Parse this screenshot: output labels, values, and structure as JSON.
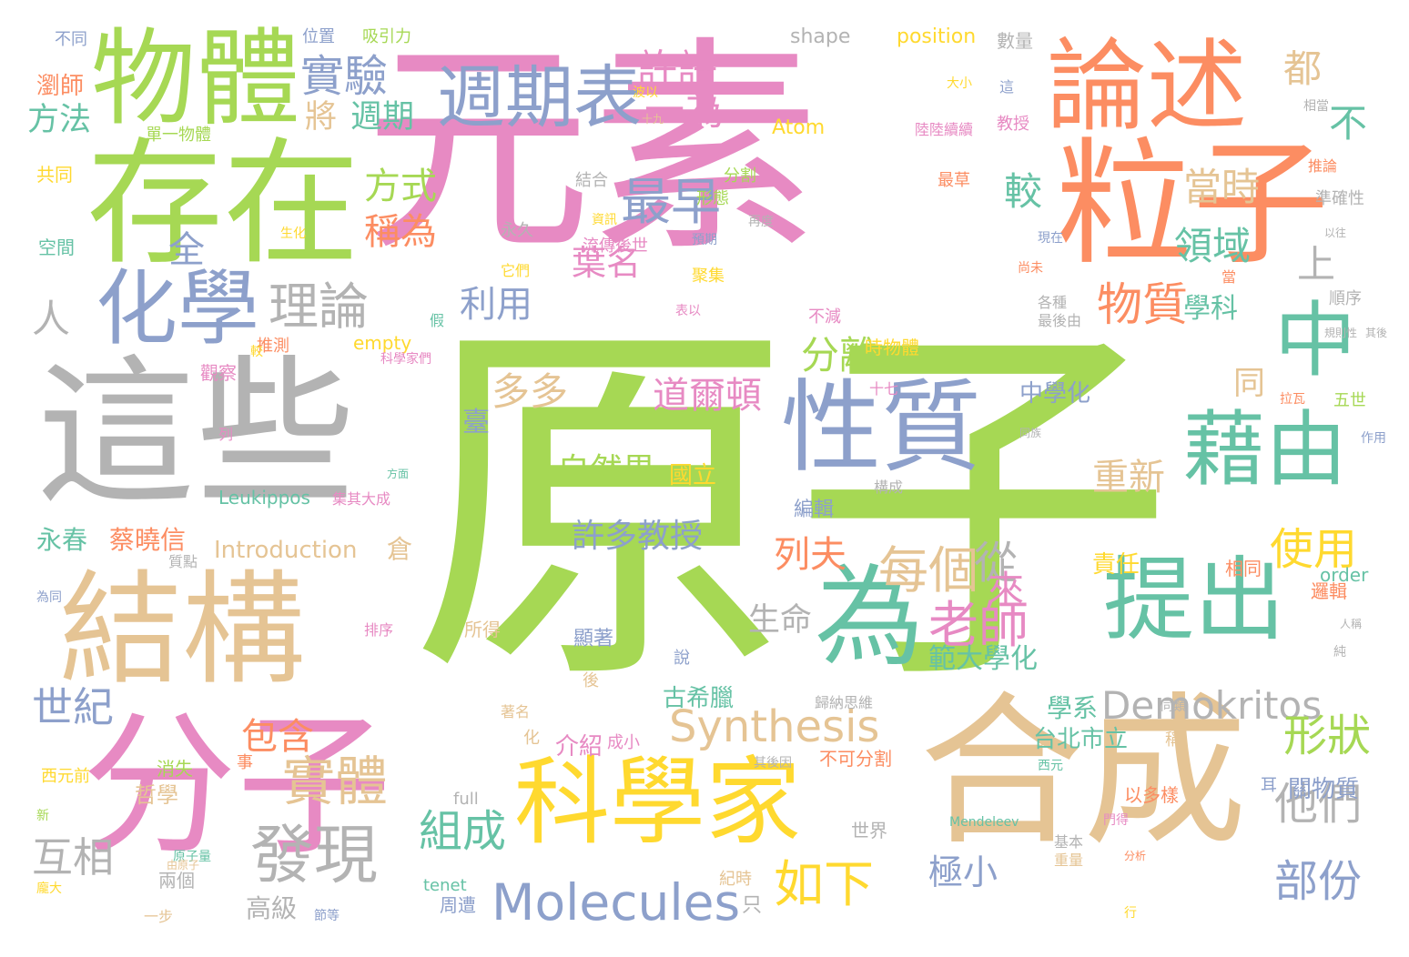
{
  "palette": {
    "green": "#a6d854",
    "pink": "#e78ac3",
    "orange": "#fc8d62",
    "blue": "#8da0cb",
    "teal": "#66c2a5",
    "yellow": "#ffd92f",
    "tan": "#e5c494",
    "gray": "#b3b3b3"
  },
  "words": [
    {
      "text": "原子",
      "color": "green"
    },
    {
      "text": "元素",
      "color": "pink"
    },
    {
      "text": "這些",
      "color": "gray"
    },
    {
      "text": "存在",
      "color": "green"
    },
    {
      "text": "粒子",
      "color": "orange"
    },
    {
      "text": "分子",
      "color": "pink"
    },
    {
      "text": "合成",
      "color": "tan"
    },
    {
      "text": "結構",
      "color": "tan"
    },
    {
      "text": "物體",
      "color": "green"
    },
    {
      "text": "論述",
      "color": "orange"
    },
    {
      "text": "化學",
      "color": "blue"
    },
    {
      "text": "性質",
      "color": "blue"
    },
    {
      "text": "科學家",
      "color": "yellow"
    },
    {
      "text": "提出",
      "color": "teal"
    },
    {
      "text": "藉由",
      "color": "teal"
    },
    {
      "text": "為",
      "color": "teal"
    },
    {
      "text": "中",
      "color": "teal"
    },
    {
      "text": "週期表",
      "color": "blue"
    },
    {
      "text": "Molecules",
      "color": "blue"
    },
    {
      "text": "Demokritos",
      "color": "gray"
    },
    {
      "text": "Synthesis",
      "color": "tan"
    },
    {
      "text": "實驗",
      "color": "blue"
    },
    {
      "text": "理論",
      "color": "gray"
    },
    {
      "text": "最早",
      "color": "blue"
    },
    {
      "text": "物質",
      "color": "orange"
    },
    {
      "text": "發現",
      "color": "gray"
    },
    {
      "text": "實體",
      "color": "tan"
    },
    {
      "text": "老師",
      "color": "pink"
    },
    {
      "text": "每個",
      "color": "tan"
    },
    {
      "text": "如下",
      "color": "yellow"
    },
    {
      "text": "組成",
      "color": "teal"
    },
    {
      "text": "形狀",
      "color": "green"
    },
    {
      "text": "部份",
      "color": "blue"
    },
    {
      "text": "使用",
      "color": "yellow"
    },
    {
      "text": "他們",
      "color": "gray"
    },
    {
      "text": "許許",
      "color": "pink"
    },
    {
      "text": "一為",
      "color": "pink"
    },
    {
      "text": "都",
      "color": "tan"
    },
    {
      "text": "不",
      "color": "teal"
    },
    {
      "text": "較",
      "color": "teal"
    },
    {
      "text": "當時",
      "color": "tan"
    },
    {
      "text": "領域",
      "color": "teal"
    },
    {
      "text": "上",
      "color": "gray"
    },
    {
      "text": "學科",
      "color": "teal"
    },
    {
      "text": "將",
      "color": "tan"
    },
    {
      "text": "週期",
      "color": "teal"
    },
    {
      "text": "方法",
      "color": "teal"
    },
    {
      "text": "方式",
      "color": "green"
    },
    {
      "text": "稱為",
      "color": "orange"
    },
    {
      "text": "全",
      "color": "blue"
    },
    {
      "text": "人",
      "color": "gray"
    },
    {
      "text": "葉名",
      "color": "pink"
    },
    {
      "text": "利用",
      "color": "blue"
    },
    {
      "text": "分離",
      "color": "green"
    },
    {
      "text": "多多",
      "color": "tan"
    },
    {
      "text": "道爾頓",
      "color": "pink"
    },
    {
      "text": "自然界",
      "color": "green"
    },
    {
      "text": "許多教授",
      "color": "blue"
    },
    {
      "text": "重新",
      "color": "tan"
    },
    {
      "text": "同",
      "color": "tan"
    },
    {
      "text": "中學化",
      "color": "blue"
    },
    {
      "text": "臺",
      "color": "blue"
    },
    {
      "text": "國立",
      "color": "yellow"
    },
    {
      "text": "列夫",
      "color": "orange"
    },
    {
      "text": "生命",
      "color": "gray"
    },
    {
      "text": "從",
      "color": "gray"
    },
    {
      "text": "來",
      "color": "pink"
    },
    {
      "text": "範大學化",
      "color": "teal"
    },
    {
      "text": "學系",
      "color": "teal"
    },
    {
      "text": "世紀",
      "color": "blue"
    },
    {
      "text": "包含",
      "color": "orange"
    },
    {
      "text": "互相",
      "color": "gray"
    },
    {
      "text": "極小",
      "color": "blue"
    },
    {
      "text": "高級",
      "color": "gray"
    },
    {
      "text": "台北市立",
      "color": "teal"
    },
    {
      "text": "永春",
      "color": "teal"
    },
    {
      "text": "蔡曉信",
      "color": "orange"
    },
    {
      "text": "Introduction",
      "color": "tan"
    },
    {
      "text": "Leukippos",
      "color": "teal"
    },
    {
      "text": "Atom",
      "color": "yellow"
    },
    {
      "text": "shape",
      "color": "gray"
    },
    {
      "text": "position",
      "color": "yellow"
    },
    {
      "text": "empty",
      "color": "yellow"
    },
    {
      "text": "order",
      "color": "teal"
    },
    {
      "text": "full",
      "color": "gray"
    },
    {
      "text": "tenet",
      "color": "teal"
    },
    {
      "text": "Mendeleev",
      "color": "teal"
    },
    {
      "text": "古希臘",
      "color": "teal"
    },
    {
      "text": "介紹",
      "color": "pink"
    },
    {
      "text": "成小",
      "color": "pink"
    },
    {
      "text": "不可分割",
      "color": "orange"
    },
    {
      "text": "責任",
      "color": "yellow"
    },
    {
      "text": "相同",
      "color": "orange"
    },
    {
      "text": "邏輯",
      "color": "orange"
    },
    {
      "text": "關物質",
      "color": "blue"
    },
    {
      "text": "以多樣",
      "color": "orange"
    },
    {
      "text": "時物體",
      "color": "yellow"
    },
    {
      "text": "哲學",
      "color": "tan"
    },
    {
      "text": "世界",
      "color": "gray"
    },
    {
      "text": "兩個",
      "color": "gray"
    },
    {
      "text": "周遭",
      "color": "blue"
    },
    {
      "text": "只",
      "color": "gray"
    },
    {
      "text": "消失",
      "color": "green"
    },
    {
      "text": "所得",
      "color": "tan"
    },
    {
      "text": "顯著",
      "color": "blue"
    },
    {
      "text": "編輯",
      "color": "blue"
    },
    {
      "text": "倉",
      "color": "tan"
    },
    {
      "text": "不同",
      "color": "blue"
    },
    {
      "text": "位置",
      "color": "blue"
    },
    {
      "text": "吸引力",
      "color": "green"
    },
    {
      "text": "數量",
      "color": "gray"
    },
    {
      "text": "瀏師",
      "color": "orange"
    },
    {
      "text": "共同",
      "color": "yellow"
    },
    {
      "text": "空間",
      "color": "teal"
    },
    {
      "text": "單一物體",
      "color": "green"
    },
    {
      "text": "結合",
      "color": "gray"
    },
    {
      "text": "分割",
      "color": "green"
    },
    {
      "text": "形態",
      "color": "green"
    },
    {
      "text": "永久",
      "color": "gray"
    },
    {
      "text": "聚集",
      "color": "yellow"
    },
    {
      "text": "它們",
      "color": "yellow"
    },
    {
      "text": "準確性",
      "color": "gray"
    },
    {
      "text": "順序",
      "color": "gray"
    },
    {
      "text": "推測",
      "color": "orange"
    },
    {
      "text": "觀察",
      "color": "pink"
    },
    {
      "text": "最草",
      "color": "orange"
    },
    {
      "text": "各種",
      "color": "gray"
    },
    {
      "text": "最後由",
      "color": "gray"
    },
    {
      "text": "不減",
      "color": "pink"
    },
    {
      "text": "西元前",
      "color": "yellow"
    },
    {
      "text": "五世",
      "color": "green"
    },
    {
      "text": "拉瓦",
      "color": "orange"
    },
    {
      "text": "質點",
      "color": "gray"
    },
    {
      "text": "為同",
      "color": "blue"
    },
    {
      "text": "十七",
      "color": "pink"
    },
    {
      "text": "構成",
      "color": "gray"
    },
    {
      "text": "集其大成",
      "color": "pink"
    },
    {
      "text": "著名",
      "color": "tan"
    },
    {
      "text": "基本",
      "color": "gray"
    },
    {
      "text": "重量",
      "color": "tan"
    },
    {
      "text": "西元",
      "color": "teal"
    },
    {
      "text": "同類",
      "color": "gray"
    },
    {
      "text": "其後因",
      "color": "gray"
    },
    {
      "text": "紀時",
      "color": "tan"
    },
    {
      "text": "歸納思維",
      "color": "gray"
    },
    {
      "text": "一步",
      "color": "tan"
    },
    {
      "text": "節等",
      "color": "blue"
    },
    {
      "text": "龐大",
      "color": "yellow"
    },
    {
      "text": "原子量",
      "color": "teal"
    },
    {
      "text": "分析",
      "color": "orange"
    },
    {
      "text": "門得",
      "color": "pink"
    },
    {
      "text": "排序",
      "color": "pink"
    },
    {
      "text": "說",
      "color": "blue"
    },
    {
      "text": "後",
      "color": "tan"
    },
    {
      "text": "事",
      "color": "orange"
    },
    {
      "text": "化",
      "color": "tan"
    },
    {
      "text": "耳",
      "color": "blue"
    },
    {
      "text": "稱",
      "color": "tan"
    },
    {
      "text": "行",
      "color": "yellow"
    },
    {
      "text": "純",
      "color": "gray"
    },
    {
      "text": "人稱",
      "color": "gray"
    },
    {
      "text": "假",
      "color": "teal"
    },
    {
      "text": "列",
      "color": "pink"
    },
    {
      "text": "新",
      "color": "green"
    },
    {
      "text": "生化",
      "color": "yellow"
    },
    {
      "text": "預期",
      "color": "blue"
    },
    {
      "text": "再度",
      "color": "gray"
    },
    {
      "text": "資訊",
      "color": "yellow"
    },
    {
      "text": "流傳後世",
      "color": "pink"
    },
    {
      "text": "推論",
      "color": "orange"
    },
    {
      "text": "相當",
      "color": "gray"
    },
    {
      "text": "陸陸續續",
      "color": "pink"
    },
    {
      "text": "教授",
      "color": "pink"
    },
    {
      "text": "十九",
      "color": "tan"
    },
    {
      "text": "波以",
      "color": "yellow"
    },
    {
      "text": "表以",
      "color": "pink"
    },
    {
      "text": "較",
      "color": "yellow"
    },
    {
      "text": "方面",
      "color": "teal"
    },
    {
      "text": "科學家們",
      "color": "pink"
    },
    {
      "text": "大小",
      "color": "yellow"
    },
    {
      "text": "這",
      "color": "blue"
    },
    {
      "text": "現在",
      "color": "blue"
    },
    {
      "text": "尚未",
      "color": "orange"
    },
    {
      "text": "當",
      "color": "orange"
    },
    {
      "text": "規則性",
      "color": "gray"
    },
    {
      "text": "同族",
      "color": "gray"
    },
    {
      "text": "作用",
      "color": "blue"
    },
    {
      "text": "以往",
      "color": "gray"
    },
    {
      "text": "其後",
      "color": "gray"
    },
    {
      "text": "由原子",
      "color": "tan"
    }
  ]
}
